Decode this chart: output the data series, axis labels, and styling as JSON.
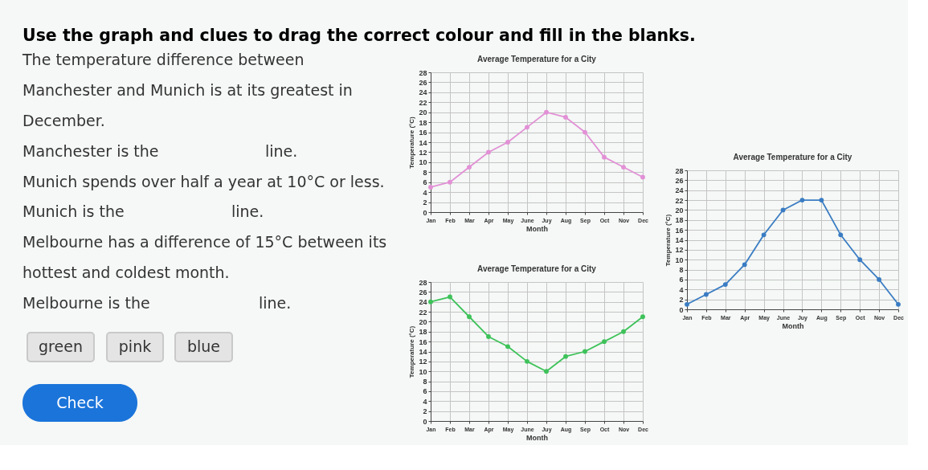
{
  "chart_data": [
    {
      "type": "other",
      "title": "Use the graph and clues to drag the correct colour and fill in the blanks.",
      "annotations": [
        "The temperature difference between",
        "Manchester and Munich is at its greatest in",
        "December.",
        "Manchester is the",
        "line.",
        "Munich spends over half a year at 10°C or less.",
        "Munich is the",
        "line.",
        "Melbourne has a difference of 15°C between its",
        "hottest and coldest month.",
        "Melbourne is the",
        "line.",
        "green",
        "pink",
        "blue",
        "Check"
      ]
    },
    {
      "type": "line",
      "title": "Average Temperature for a City",
      "xlabel": "Month",
      "ylabel": "Temperature (°C)",
      "categories": [
        "Jan",
        "Feb",
        "Mar",
        "Apr",
        "May",
        "June",
        "Juy",
        "Aug",
        "Sep",
        "Oct",
        "Nov",
        "Dec"
      ],
      "series": [
        {
          "color": "#e291d6",
          "values": [
            5,
            6,
            9,
            12,
            14,
            17,
            20,
            19,
            16,
            11,
            9,
            7
          ]
        }
      ],
      "ylim": [
        0,
        28
      ],
      "yticks": [
        0,
        2,
        4,
        6,
        8,
        10,
        12,
        14,
        16,
        18,
        20,
        22,
        24,
        26,
        28
      ],
      "grid": true,
      "marker": "circle"
    },
    {
      "type": "line",
      "title": "Average Temperature for a City",
      "xlabel": "Month",
      "ylabel": "Temperature (°C)",
      "categories": [
        "Jan",
        "Feb",
        "Mar",
        "Apr",
        "May",
        "June",
        "Juy",
        "Aug",
        "Sep",
        "Oct",
        "Nov",
        "Dec"
      ],
      "series": [
        {
          "color": "#3a7cc3",
          "values": [
            1,
            3,
            5,
            9,
            15,
            20,
            22,
            22,
            15,
            10,
            6,
            1
          ]
        }
      ],
      "ylim": [
        0,
        28
      ],
      "yticks": [
        0,
        2,
        4,
        6,
        8,
        10,
        12,
        14,
        16,
        18,
        20,
        22,
        24,
        26,
        28
      ],
      "grid": true,
      "marker": "circle"
    },
    {
      "type": "line",
      "title": "Average Temperature for a City",
      "xlabel": "Month",
      "ylabel": "Temperature (°C)",
      "categories": [
        "Jan",
        "Feb",
        "Mar",
        "Apr",
        "May",
        "June",
        "Juy",
        "Aug",
        "Sep",
        "Oct",
        "Nov",
        "Dec"
      ],
      "series": [
        {
          "color": "#3ec25a",
          "values": [
            24,
            25,
            21,
            17,
            15,
            12,
            10,
            13,
            14,
            16,
            18,
            21
          ]
        }
      ],
      "ylim": [
        0,
        28
      ],
      "yticks": [
        0,
        2,
        4,
        6,
        8,
        10,
        12,
        14,
        16,
        18,
        20,
        22,
        24,
        26,
        28
      ],
      "grid": true,
      "marker": "circle"
    }
  ]
}
